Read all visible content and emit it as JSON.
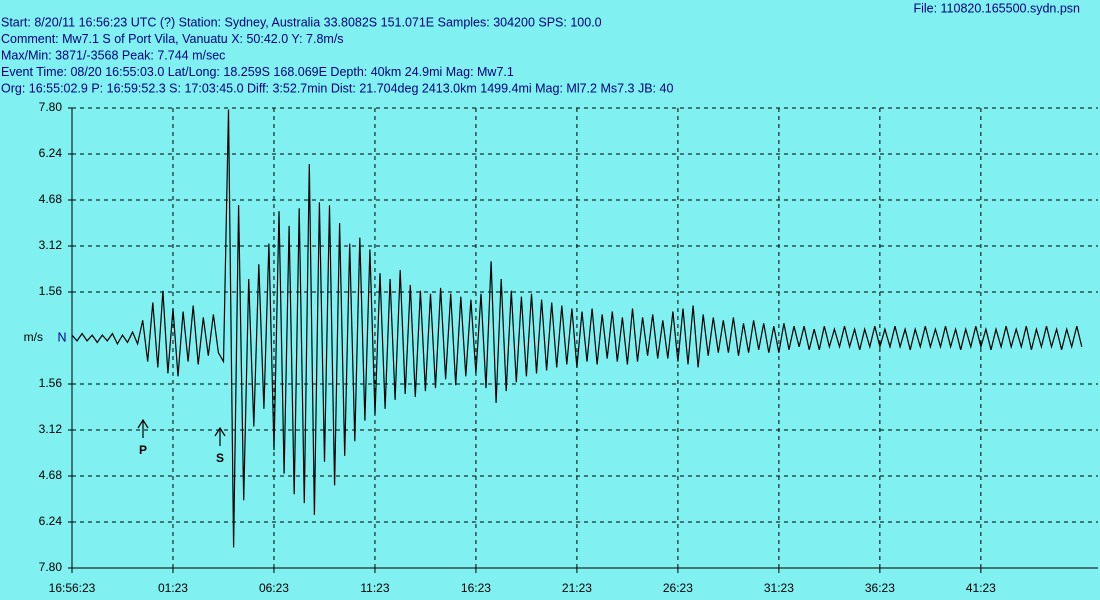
{
  "chart_data": {
    "type": "line",
    "header": [
      "Start: 8/20/11 16:56:23 UTC (?) Station: Sydney, Australia 33.8082S 151.071E Samples: 304200  SPS: 100.0",
      "Comment: Mw7.1 S of Port Vila, Vanuatu  X: 50:42.0 Y: 7.8m/s",
      "Max/Min: 3871/-3568  Peak: 7.744 m/sec",
      "Event Time: 08/20 16:55:03.0 Lat/Long: 18.259S 168.069E Depth: 40km 24.9mi Mag: Mw7.1",
      "Org: 16:55:02.9 P: 16:59:52.3 S: 17:03:45.0 Diff: 3:52.7min Dist: 21.704deg 2413.0km 1499.4mi  Mag: Ml7.2 Ms7.3 JB: 40"
    ],
    "file": "File: 110820.165500.sydn.psn",
    "ylabel": "m/s",
    "channel": "N",
    "annotations": [
      "P",
      "S"
    ],
    "color": "#000000",
    "grid": true,
    "xlim": [
      0,
      50.8
    ],
    "ylim": [
      -7.8,
      7.8
    ],
    "xticks": [
      {
        "value": 0,
        "label": "16:56:23"
      },
      {
        "value": 5,
        "label": "01:23"
      },
      {
        "value": 10,
        "label": "06:23"
      },
      {
        "value": 15,
        "label": "11:23"
      },
      {
        "value": 20,
        "label": "16:23"
      },
      {
        "value": 25,
        "label": "21:23"
      },
      {
        "value": 30,
        "label": "26:23"
      },
      {
        "value": 35,
        "label": "31:23"
      },
      {
        "value": 40,
        "label": "36:23"
      },
      {
        "value": 45,
        "label": "41:23"
      }
    ],
    "yticks": [
      {
        "value": 7.8,
        "label": "7.80"
      },
      6.24,
      4.68,
      3.12,
      1.56,
      {
        "value": -1.56,
        "label": "1.56"
      },
      {
        "value": -3.12,
        "label": "3.12"
      },
      {
        "value": -4.68,
        "label": "4.68"
      },
      {
        "value": -6.24,
        "label": "6.24"
      },
      {
        "value": -7.8,
        "label": "7.80"
      }
    ],
    "x": [
      0,
      0.25,
      0.5,
      0.75,
      1,
      1.25,
      1.5,
      1.75,
      2,
      2.25,
      2.5,
      2.75,
      3,
      3.25,
      3.5,
      3.75,
      4,
      4.25,
      4.5,
      4.75,
      5,
      5.25,
      5.5,
      5.75,
      6,
      6.25,
      6.5,
      6.75,
      7,
      7.25,
      7.5,
      7.75,
      8,
      8.25,
      8.5,
      8.75,
      9,
      9.25,
      9.5,
      9.75,
      10,
      10.25,
      10.5,
      10.75,
      11,
      11.25,
      11.5,
      11.75,
      12,
      12.25,
      12.5,
      12.75,
      13,
      13.25,
      13.5,
      13.75,
      14,
      14.25,
      14.5,
      14.75,
      15,
      15.25,
      15.5,
      15.75,
      16,
      16.25,
      16.5,
      16.75,
      17,
      17.25,
      17.5,
      17.75,
      18,
      18.25,
      18.5,
      18.75,
      19,
      19.25,
      19.5,
      19.75,
      20,
      20.25,
      20.5,
      20.75,
      21,
      21.25,
      21.5,
      21.75,
      22,
      22.25,
      22.5,
      22.75,
      23,
      23.25,
      23.5,
      23.75,
      24,
      24.25,
      24.5,
      24.75,
      25,
      25.25,
      25.5,
      25.75,
      26,
      26.25,
      26.5,
      26.75,
      27,
      27.25,
      27.5,
      27.75,
      28,
      28.25,
      28.5,
      28.75,
      29,
      29.25,
      29.5,
      29.75,
      30,
      30.25,
      30.5,
      30.75,
      31,
      31.25,
      31.5,
      31.75,
      32,
      32.25,
      32.5,
      32.75,
      33,
      33.25,
      33.5,
      33.75,
      34,
      34.25,
      34.5,
      34.75,
      35,
      35.25,
      35.5,
      35.75,
      36,
      36.25,
      36.5,
      36.75,
      37,
      37.25,
      37.5,
      37.75,
      38,
      38.25,
      38.5,
      38.75,
      39,
      39.25,
      39.5,
      39.75,
      40,
      40.25,
      40.5,
      40.75,
      41,
      41.25,
      41.5,
      41.75,
      42,
      42.25,
      42.5,
      42.75,
      43,
      43.25,
      43.5,
      43.75,
      44,
      44.25,
      44.5,
      44.75,
      45,
      45.25,
      45.5,
      45.75,
      46,
      46.25,
      46.5,
      46.75,
      47,
      47.25,
      47.5,
      47.75,
      48,
      48.25,
      48.5,
      48.75,
      49,
      49.25,
      49.5,
      49.75,
      50
    ],
    "values": [
      0.1,
      -0.1,
      0.15,
      -0.1,
      0.1,
      -0.15,
      0.1,
      -0.1,
      0.15,
      -0.2,
      0.1,
      -0.15,
      0.2,
      -0.2,
      0.6,
      -0.8,
      1.2,
      -1.0,
      1.6,
      -1.2,
      1.0,
      -1.3,
      0.9,
      -0.8,
      1.1,
      -0.9,
      0.7,
      -0.6,
      0.8,
      -0.5,
      -0.8,
      7.75,
      -7.1,
      4.5,
      -5.5,
      2.0,
      -3.0,
      2.5,
      -2.4,
      3.2,
      -3.8,
      4.3,
      -4.6,
      3.8,
      -5.3,
      4.4,
      -5.6,
      5.9,
      -6.0,
      4.6,
      -4.2,
      4.5,
      -5.0,
      3.9,
      -4.0,
      3.2,
      -3.5,
      3.4,
      -2.8,
      3.0,
      -2.6,
      2.2,
      -2.4,
      2.0,
      -2.1,
      2.3,
      -1.9,
      1.8,
      -2.0,
      1.6,
      -1.8,
      1.5,
      -1.7,
      1.7,
      -1.4,
      1.5,
      -1.6,
      1.4,
      -1.3,
      1.3,
      -1.2,
      1.5,
      -1.7,
      2.6,
      -2.2,
      2.0,
      -1.8,
      1.6,
      -1.5,
      1.4,
      -1.3,
      1.5,
      -1.2,
      1.3,
      -1.1,
      1.2,
      -1.0,
      1.1,
      -0.9,
      1.0,
      -1.0,
      0.9,
      -0.8,
      1.0,
      -0.9,
      0.8,
      -0.7,
      0.9,
      -0.8,
      0.7,
      -0.9,
      1.0,
      -0.8,
      0.7,
      -0.6,
      0.8,
      -0.7,
      0.6,
      -0.7,
      0.9,
      -0.8,
      1.0,
      -0.9,
      1.1,
      -1.0,
      0.8,
      -0.6,
      0.7,
      -0.5,
      0.6,
      -0.5,
      0.7,
      -0.6,
      0.5,
      -0.5,
      0.6,
      -0.4,
      0.5,
      -0.5,
      0.4,
      -0.5,
      0.5,
      -0.4,
      0.4,
      -0.3,
      0.4,
      -0.4,
      0.3,
      -0.4,
      0.4,
      -0.3,
      0.3,
      -0.3,
      0.4,
      -0.3,
      0.3,
      -0.4,
      0.3,
      -0.3,
      0.4,
      -0.3,
      0.3,
      -0.3,
      0.4,
      -0.3,
      0.3,
      -0.4,
      0.3,
      -0.3,
      0.4,
      -0.3,
      0.3,
      -0.3,
      0.4,
      -0.3,
      0.3,
      -0.4,
      0.3,
      -0.3,
      0.4,
      -0.3,
      0.3,
      -0.4,
      0.3,
      -0.3,
      0.4,
      -0.3,
      0.3,
      -0.3,
      0.4,
      -0.4,
      0.3,
      -0.3,
      0.4,
      -0.3,
      0.3,
      -0.4,
      0.3,
      -0.3,
      0.4,
      -0.3
    ]
  }
}
